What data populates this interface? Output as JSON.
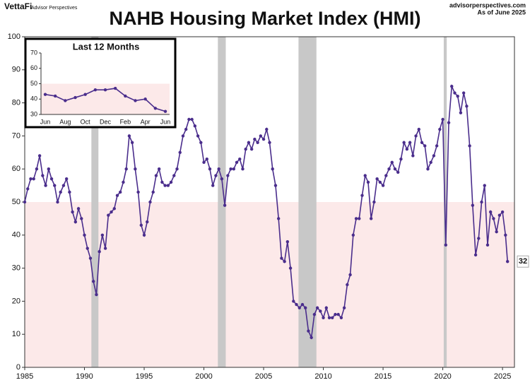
{
  "header": {
    "brand": "VettaFi",
    "brand_sub": "Advisor Perspectives",
    "site": "advisorperspectives.com",
    "asof": "As of June 2025"
  },
  "chart_data": [
    {
      "type": "line",
      "title": "NAHB Housing Market Index (HMI)",
      "color": "#4a2d8c",
      "x": [
        1985,
        1985.25,
        1985.5,
        1985.75,
        1986,
        1986.25,
        1986.5,
        1986.75,
        1987,
        1987.25,
        1987.5,
        1987.75,
        1988,
        1988.25,
        1988.5,
        1988.75,
        1989,
        1989.25,
        1989.5,
        1989.75,
        1990,
        1990.25,
        1990.5,
        1990.75,
        1991,
        1991.25,
        1991.5,
        1991.75,
        1992,
        1992.25,
        1992.5,
        1992.75,
        1993,
        1993.25,
        1993.5,
        1993.75,
        1994,
        1994.25,
        1994.5,
        1994.75,
        1995,
        1995.25,
        1995.5,
        1995.75,
        1996,
        1996.25,
        1996.5,
        1996.75,
        1997,
        1997.25,
        1997.5,
        1997.75,
        1998,
        1998.25,
        1998.5,
        1998.75,
        1999,
        1999.25,
        1999.5,
        1999.75,
        2000,
        2000.25,
        2000.5,
        2000.75,
        2001,
        2001.25,
        2001.5,
        2001.75,
        2002,
        2002.25,
        2002.5,
        2002.75,
        2003,
        2003.25,
        2003.5,
        2003.75,
        2004,
        2004.25,
        2004.5,
        2004.75,
        2005,
        2005.25,
        2005.5,
        2005.75,
        2006,
        2006.25,
        2006.5,
        2006.75,
        2007,
        2007.25,
        2007.5,
        2007.75,
        2008,
        2008.25,
        2008.5,
        2008.75,
        2009,
        2009.25,
        2009.5,
        2009.75,
        2010,
        2010.25,
        2010.5,
        2010.75,
        2011,
        2011.25,
        2011.5,
        2011.75,
        2012,
        2012.25,
        2012.5,
        2012.75,
        2013,
        2013.25,
        2013.5,
        2013.75,
        2014,
        2014.25,
        2014.5,
        2014.75,
        2015,
        2015.25,
        2015.5,
        2015.75,
        2016,
        2016.25,
        2016.5,
        2016.75,
        2017,
        2017.25,
        2017.5,
        2017.75,
        2018,
        2018.25,
        2018.5,
        2018.75,
        2019,
        2019.25,
        2019.5,
        2019.75,
        2020,
        2020.25,
        2020.5,
        2020.75,
        2021,
        2021.25,
        2021.5,
        2021.75,
        2022,
        2022.25,
        2022.5,
        2022.75,
        2023,
        2023.25,
        2023.5,
        2023.75,
        2024,
        2024.25,
        2024.5,
        2024.75,
        2025,
        2025.25,
        2025.42
      ],
      "values": [
        50,
        54,
        57,
        57,
        60,
        64,
        58,
        55,
        60,
        57,
        55,
        50,
        53,
        55,
        57,
        53,
        47,
        44,
        48,
        45,
        40,
        36,
        33,
        26,
        22,
        35,
        40,
        36,
        46,
        47,
        48,
        52,
        53,
        56,
        60,
        70,
        68,
        60,
        53,
        43,
        40,
        44,
        50,
        53,
        58,
        60,
        56,
        55,
        55,
        56,
        58,
        60,
        65,
        70,
        72,
        75,
        75,
        73,
        70,
        68,
        62,
        63,
        60,
        55,
        58,
        60,
        57,
        49,
        58,
        60,
        60,
        62,
        63,
        60,
        66,
        68,
        66,
        69,
        68,
        70,
        69,
        72,
        68,
        60,
        55,
        45,
        33,
        32,
        38,
        30,
        20,
        19,
        18,
        19,
        18,
        11,
        9,
        16,
        18,
        17,
        15,
        18,
        15,
        15,
        16,
        16,
        15,
        18,
        25,
        28,
        40,
        45,
        45,
        52,
        58,
        56,
        45,
        50,
        57,
        56,
        55,
        58,
        60,
        62,
        60,
        59,
        63,
        68,
        66,
        68,
        64,
        70,
        72,
        68,
        67,
        60,
        62,
        64,
        67,
        72,
        75,
        37,
        74,
        85,
        83,
        82,
        77,
        83,
        79,
        67,
        49,
        34,
        39,
        50,
        55,
        37,
        47,
        45,
        41,
        46,
        47,
        40,
        32
      ],
      "xlim": [
        1985,
        2026
      ],
      "xticks": [
        1985,
        1990,
        1995,
        2000,
        2005,
        2010,
        2015,
        2020,
        2025
      ],
      "ylim": [
        0,
        100
      ],
      "yticks": [
        0,
        10,
        20,
        30,
        40,
        50,
        60,
        70,
        80,
        90,
        100
      ],
      "shade_below": 50,
      "recessions": [
        [
          1990.58,
          1991.17
        ],
        [
          2001.17,
          2001.83
        ],
        [
          2007.92,
          2009.42
        ],
        [
          2020.08,
          2020.33
        ]
      ]
    },
    {
      "type": "line",
      "title": "Last 12 Months",
      "color": "#4a2d8c",
      "categories": [
        "Jun",
        null,
        "Aug",
        null,
        "Oct",
        null,
        "Dec",
        null,
        "Feb",
        null,
        "Apr",
        null,
        "Jun"
      ],
      "values": [
        43,
        42,
        39,
        41,
        43,
        46,
        46,
        47,
        42,
        39,
        40,
        34,
        32
      ],
      "ylim": [
        30,
        70
      ],
      "yticks": [
        30,
        40,
        50,
        60,
        70
      ],
      "shade_below": 50
    }
  ]
}
